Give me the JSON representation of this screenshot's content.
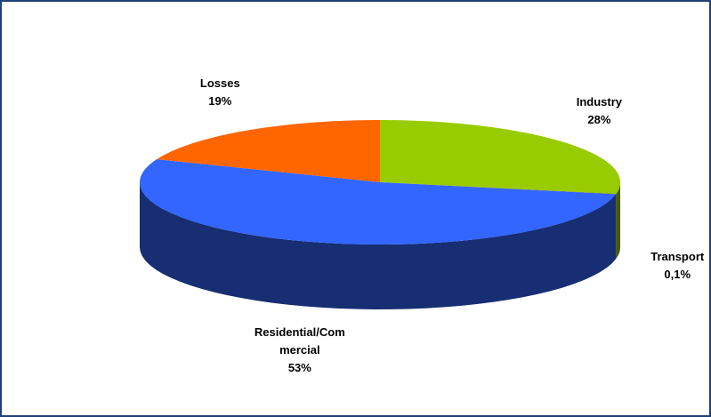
{
  "chart_data": {
    "type": "pie",
    "categories": [
      "Industry",
      "Transport",
      "Residential/Commercial",
      "Losses"
    ],
    "values": [
      28,
      0.1,
      53,
      19
    ],
    "value_labels": [
      "28%",
      "0,1%",
      "53%",
      "19%"
    ],
    "colors": [
      "#99cc00",
      "#666600",
      "#3366ff",
      "#ff6600"
    ]
  }
}
